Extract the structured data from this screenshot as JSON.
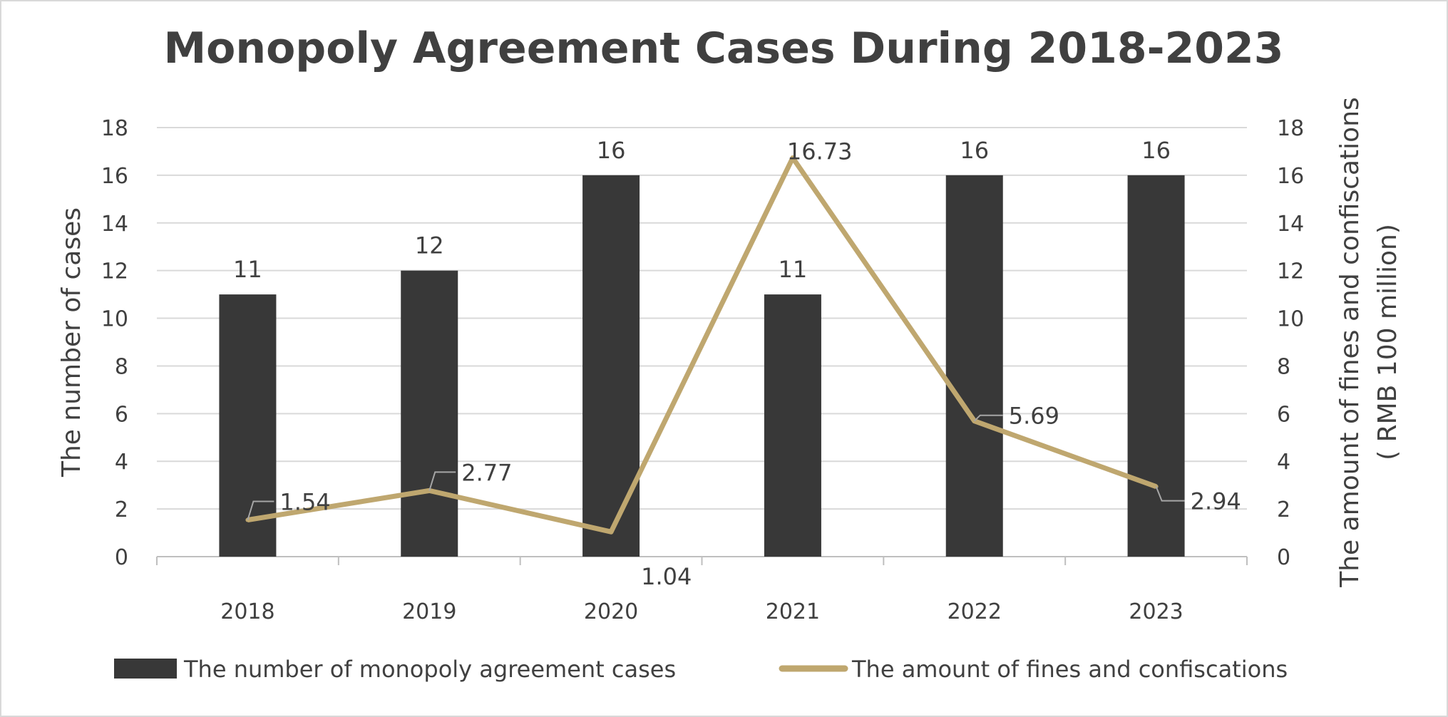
{
  "chart_data": {
    "type": "bar+line",
    "title": "Monopoly Agreement Cases During 2018-2023",
    "categories": [
      "2018",
      "2019",
      "2020",
      "2021",
      "2022",
      "2023"
    ],
    "series": [
      {
        "name": "The number of monopoly agreement cases",
        "type": "bar",
        "axis": "left",
        "values": [
          11,
          12,
          16,
          11,
          16,
          16
        ],
        "color": "#383838"
      },
      {
        "name": "The amount of fines and confiscations",
        "type": "line",
        "axis": "right",
        "values": [
          1.54,
          2.77,
          1.04,
          16.73,
          5.69,
          2.94
        ],
        "color": "#BFA76F"
      }
    ],
    "ylabel": "The number of cases",
    "y2label": [
      "The amount of fines and confiscations",
      "( RMB 100 million)"
    ],
    "ylim": [
      0,
      18
    ],
    "y2lim": [
      0,
      18
    ],
    "yticks": [
      0,
      2,
      4,
      6,
      8,
      10,
      12,
      14,
      16,
      18
    ],
    "grid": true,
    "legend": "bottom"
  }
}
